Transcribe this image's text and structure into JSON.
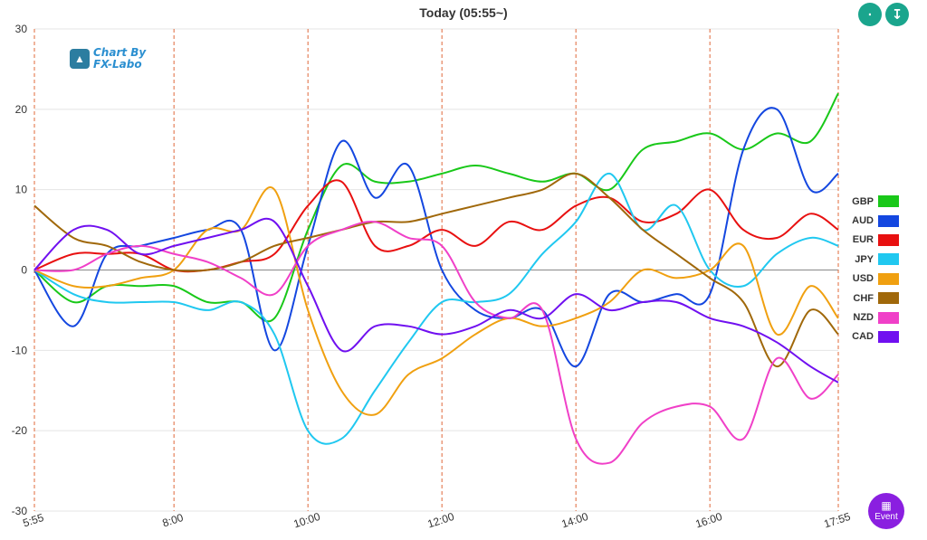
{
  "header": {
    "title": "Today  (05:55~)"
  },
  "toolbar": {
    "compress_icon": "compress-vertical-icon",
    "expand_icon": "expand-vertical-icon"
  },
  "logo": {
    "line1": "Chart By",
    "line2": "FX-Labo"
  },
  "event_button": {
    "label": "Event",
    "icon": "calendar-icon"
  },
  "chart_data": {
    "type": "line",
    "y_ticks": [
      30,
      20,
      10,
      0,
      -10,
      -20,
      -30
    ],
    "ylim": [
      -30,
      30
    ],
    "xlim": [
      5.9167,
      17.9167
    ],
    "x_tick_labels": [
      "5:55",
      "8:00",
      "10:00",
      "12:00",
      "14:00",
      "16:00",
      "17:55"
    ],
    "x_tick_values": [
      5.9167,
      8,
      10,
      12,
      14,
      16,
      17.9167
    ],
    "x": [
      5.9167,
      6.5,
      7,
      7.5,
      8,
      8.5,
      9,
      9.5,
      10,
      10.5,
      11,
      11.5,
      12,
      12.5,
      13,
      13.5,
      14,
      14.5,
      15,
      15.5,
      16,
      16.5,
      17,
      17.5,
      17.9167
    ],
    "series": [
      {
        "name": "GBP",
        "color": "#19c819",
        "values": [
          0,
          -4,
          -2,
          -2,
          -2,
          -4,
          -4,
          -6,
          5,
          13,
          11,
          11,
          12,
          13,
          12,
          11,
          12,
          10,
          15,
          16,
          17,
          15,
          17,
          16,
          22
        ]
      },
      {
        "name": "AUD",
        "color": "#1447e0",
        "values": [
          0,
          -7,
          2,
          3,
          4,
          5,
          5,
          -10,
          3,
          16,
          9,
          13,
          0,
          -5,
          -6,
          -5,
          -12,
          -3,
          -4,
          -3,
          -3,
          15,
          20,
          10,
          12
        ]
      },
      {
        "name": "EUR",
        "color": "#e81010",
        "values": [
          0,
          2,
          2,
          2,
          0,
          0,
          1,
          2,
          8,
          11,
          3,
          3,
          5,
          3,
          6,
          5,
          8,
          9,
          6,
          7,
          10,
          5,
          4,
          7,
          5
        ]
      },
      {
        "name": "JPY",
        "color": "#20c8f0",
        "values": [
          0,
          -3,
          -4,
          -4,
          -4,
          -5,
          -4,
          -8,
          -20,
          -21,
          -15,
          -9,
          -4,
          -4,
          -3,
          2,
          6,
          12,
          5,
          8,
          0,
          -2,
          2,
          4,
          3
        ]
      },
      {
        "name": "USD",
        "color": "#f0a010",
        "values": [
          0,
          -2,
          -2,
          -1,
          0,
          5,
          5,
          10,
          -5,
          -15,
          -18,
          -13,
          -11,
          -8,
          -6,
          -7,
          -6,
          -4,
          0,
          -1,
          0,
          3,
          -8,
          -2,
          -6
        ]
      },
      {
        "name": "CHF",
        "color": "#a0680a",
        "values": [
          8,
          4,
          3,
          1,
          0,
          0,
          1,
          3,
          4,
          5,
          6,
          6,
          7,
          8,
          9,
          10,
          12,
          9,
          5,
          2,
          -1,
          -4,
          -12,
          -5,
          -8
        ]
      },
      {
        "name": "NZD",
        "color": "#f040c8",
        "values": [
          0,
          0,
          2,
          3,
          2,
          1,
          -1,
          -3,
          3,
          5,
          6,
          4,
          3,
          -4,
          -6,
          -5,
          -21,
          -24,
          -19,
          -17,
          -17,
          -21,
          -11,
          -16,
          -13
        ]
      },
      {
        "name": "CAD",
        "color": "#7010f0",
        "values": [
          0,
          5,
          5,
          2,
          3,
          4,
          5,
          6,
          -2,
          -10,
          -7,
          -7,
          -8,
          -7,
          -5,
          -6,
          -3,
          -5,
          -4,
          -4,
          -6,
          -7,
          -9,
          -12,
          -14
        ]
      }
    ]
  }
}
